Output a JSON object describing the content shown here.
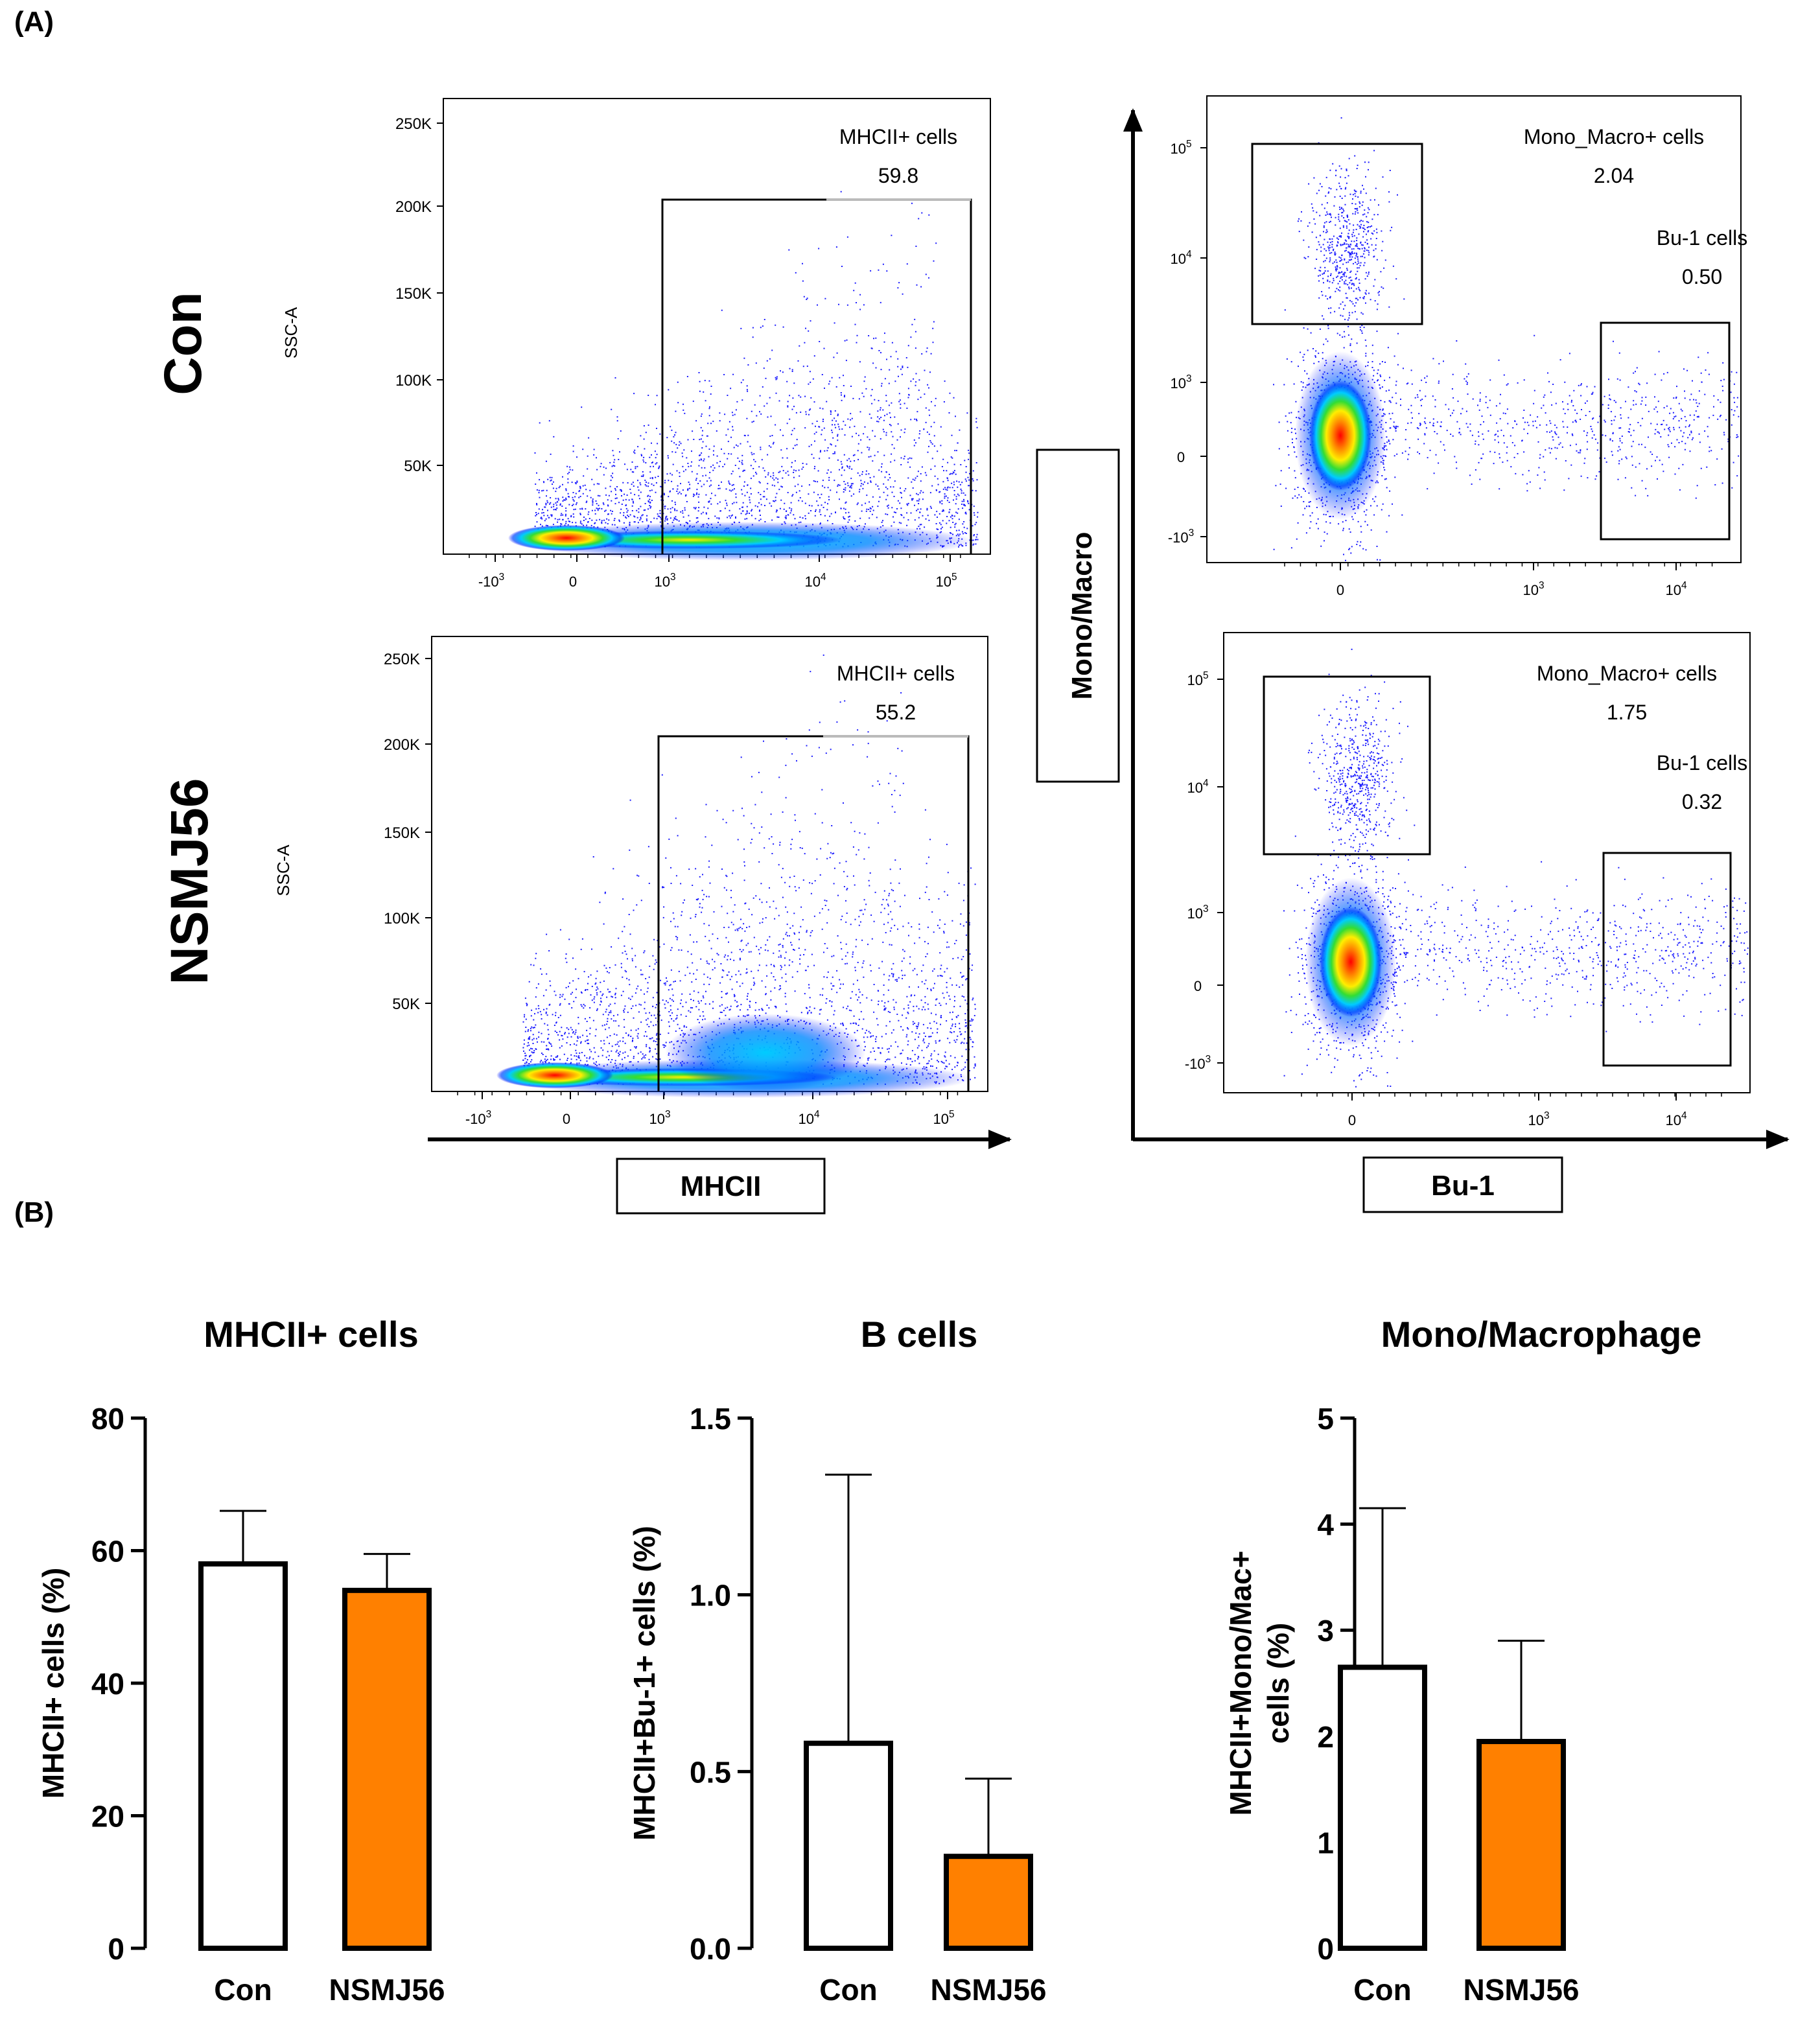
{
  "panel_labels": {
    "a": "(A)",
    "b": "(B)"
  },
  "flow": {
    "row_labels": [
      "Con",
      "NSMJ56"
    ],
    "mhcii_axis_name": "MHCII",
    "bu1_axis_name": "Bu-1",
    "monomacro_axis_name": "Mono/Macro",
    "ssc_label": "SSC-A",
    "ssc_ticks": [
      "250K",
      "200K",
      "150K",
      "100K",
      "50K"
    ],
    "mhcii_xticks": [
      {
        "base": "-10",
        "exp": "3"
      },
      {
        "base": "0",
        "exp": ""
      },
      {
        "base": "10",
        "exp": "3"
      },
      {
        "base": "10",
        "exp": "4"
      },
      {
        "base": "10",
        "exp": "5"
      }
    ],
    "bu1_xticks": [
      {
        "base": "0",
        "exp": ""
      },
      {
        "base": "10",
        "exp": "3"
      },
      {
        "base": "10",
        "exp": "4"
      }
    ],
    "mono_yticks": [
      {
        "base": "10",
        "exp": "5"
      },
      {
        "base": "10",
        "exp": "4"
      },
      {
        "base": "10",
        "exp": "3"
      },
      {
        "base": "0",
        "exp": ""
      },
      {
        "base": "-10",
        "exp": "3"
      }
    ],
    "con_mhcii": {
      "gate_label": "MHCII+ cells",
      "value": "59.8"
    },
    "nsmj_mhcii": {
      "gate_label": "MHCII+ cells",
      "value": "55.2"
    },
    "con_bu": {
      "mono_label": "Mono_Macro+ cells",
      "mono_value": "2.04",
      "bu_label": "Bu-1 cells",
      "bu_value": "0.50"
    },
    "nsmj_bu": {
      "mono_label": "Mono_Macro+ cells",
      "mono_value": "1.75",
      "bu_label": "Bu-1 cells",
      "bu_value": "0.32"
    }
  },
  "chart_data": [
    {
      "type": "bar",
      "title": "MHCII+ cells",
      "categories": [
        "Con",
        "NSMJ56"
      ],
      "values": [
        58,
        54
      ],
      "errors": [
        8,
        5.5
      ],
      "ylabel": "MHCII+ cells  (%)",
      "ylim": [
        0,
        80
      ],
      "yticks": [
        0,
        20,
        40,
        60,
        80
      ],
      "ytick_labels": [
        "0",
        "20",
        "40",
        "60",
        "80"
      ],
      "colors": [
        "#ffffff",
        "#ff8000"
      ]
    },
    {
      "type": "bar",
      "title": "B cells",
      "categories": [
        "Con",
        "NSMJ56"
      ],
      "values": [
        0.58,
        0.26
      ],
      "errors": [
        0.76,
        0.22
      ],
      "ylabel": "MHCII+Bu-1+ cells (%)",
      "ylim": [
        0,
        1.5
      ],
      "yticks": [
        0,
        0.5,
        1.0,
        1.5
      ],
      "ytick_labels": [
        "0.0",
        "0.5",
        "1.0",
        "1.5"
      ],
      "colors": [
        "#ffffff",
        "#ff8000"
      ]
    },
    {
      "type": "bar",
      "title": "Mono/Macrophage",
      "categories": [
        "Con",
        "NSMJ56"
      ],
      "values": [
        2.65,
        1.95
      ],
      "errors": [
        1.5,
        0.95
      ],
      "ylabel": "MHCII+Mono/Mac+ cells (%)",
      "ylabel_lines": [
        "MHCII+Mono/Mac+",
        "cells (%)"
      ],
      "ylim": [
        0,
        5
      ],
      "yticks": [
        0,
        1,
        2,
        3,
        4,
        5
      ],
      "ytick_labels": [
        "0",
        "1",
        "2",
        "3",
        "4",
        "5"
      ],
      "colors": [
        "#ffffff",
        "#ff8000"
      ]
    }
  ]
}
